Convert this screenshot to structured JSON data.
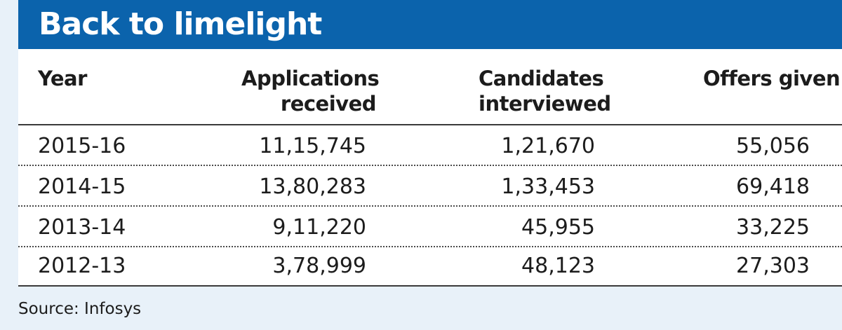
{
  "title": "Back to limelight",
  "source": "Source: Infosys",
  "colors": {
    "banner": "#0b63ac",
    "background": "#e8f1f9",
    "table": "#ffffff"
  },
  "chart_data": {
    "type": "table",
    "title": "Back to limelight",
    "columns": [
      {
        "lines": [
          "Year"
        ]
      },
      {
        "lines": [
          "Applications",
          "received"
        ]
      },
      {
        "lines": [
          "Candidates",
          "interviewed"
        ]
      },
      {
        "lines": [
          "Offers given"
        ]
      }
    ],
    "rows": [
      [
        "2015-16",
        "11,15,745",
        "1,21,670",
        "55,056"
      ],
      [
        "2014-15",
        "13,80,283",
        "1,33,453",
        "69,418"
      ],
      [
        "2013-14",
        "9,11,220",
        "45,955",
        "33,225"
      ],
      [
        "2012-13",
        "3,78,999",
        "48,123",
        "27,303"
      ]
    ],
    "source": "Source: Infosys"
  }
}
